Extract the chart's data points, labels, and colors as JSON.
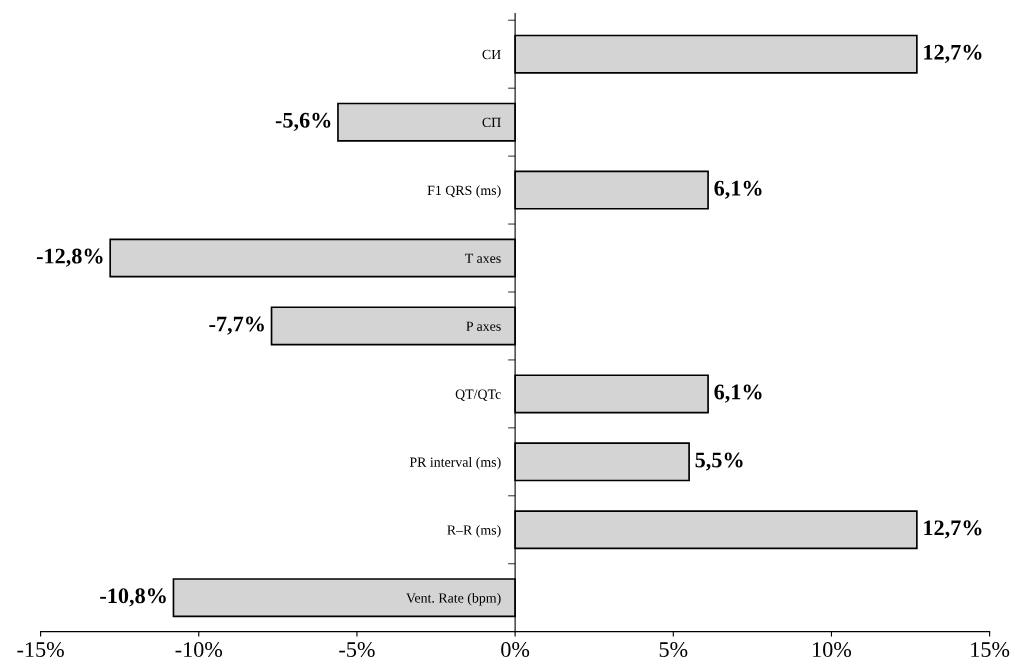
{
  "chart_data": {
    "type": "bar",
    "orientation": "horizontal",
    "categories": [
      "СИ",
      "СП",
      "F1 QRS (ms)",
      "T axes",
      "P axes",
      "QT/QTc",
      "PR interval (ms)",
      "R–R (ms)",
      "Vent. Rate (bpm)"
    ],
    "values": [
      12.7,
      -5.6,
      6.1,
      -12.8,
      -7.7,
      6.1,
      5.5,
      12.7,
      -10.8
    ],
    "value_labels": [
      "12,7%",
      "-5,6%",
      "6,1%",
      "-12,8%",
      "-7,7%",
      "6,1%",
      "5,5%",
      "12,7%",
      "-10,8%"
    ],
    "color": "#d4d4d4",
    "xlim": [
      -15,
      15
    ],
    "xticks": [
      {
        "value": -15,
        "label": "-15%"
      },
      {
        "value": -10,
        "label": "-10%"
      },
      {
        "value": -5,
        "label": "-5%"
      },
      {
        "value": 0,
        "label": "0%"
      },
      {
        "value": 5,
        "label": "5%"
      },
      {
        "value": 10,
        "label": "10%"
      },
      {
        "value": 15,
        "label": "15%"
      }
    ],
    "grid": false,
    "legend": false
  }
}
